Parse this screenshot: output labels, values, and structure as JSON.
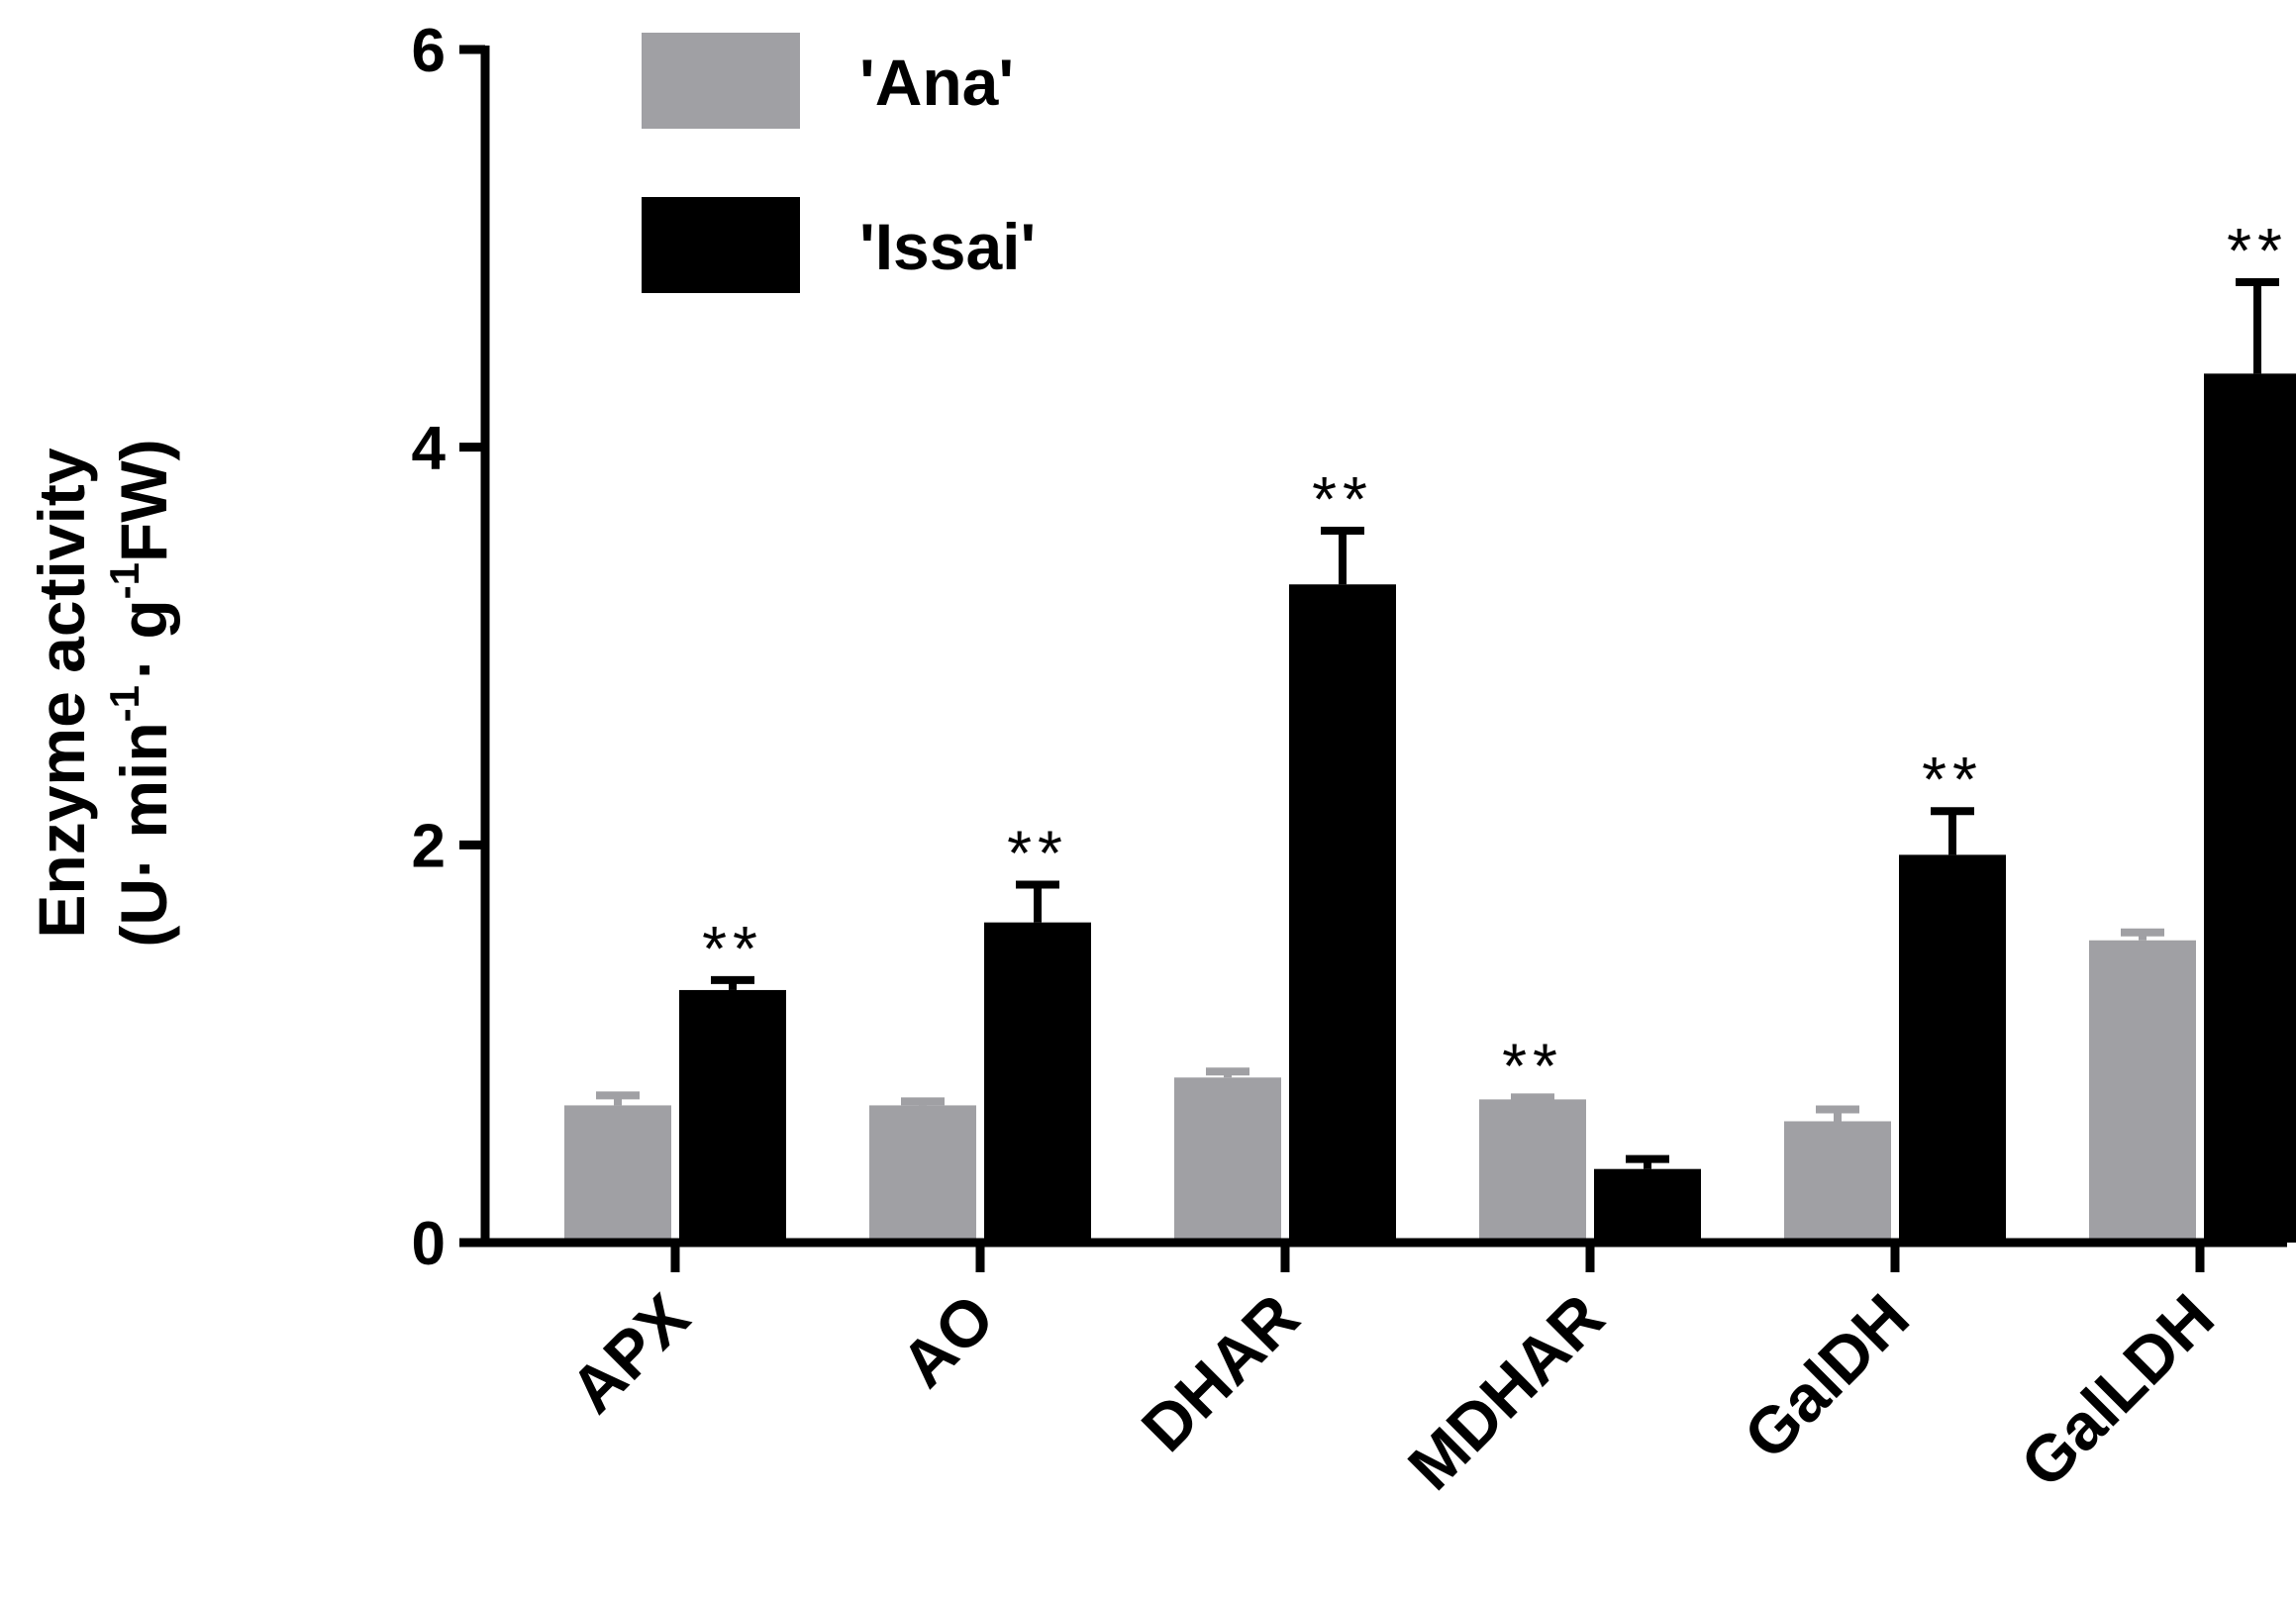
{
  "chart_data": {
    "type": "bar",
    "title": "",
    "xlabel": "",
    "ylabel_line1": "Enzyme activity",
    "ylabel_line2": {
      "p1": "(U· min",
      "sup1": "-1",
      "p2": "· g",
      "sup2": "-1",
      "p3": "FW)"
    },
    "ylim": [
      0,
      6
    ],
    "yticks": [
      0,
      2,
      4,
      6
    ],
    "ytick_labels": [
      "0",
      "2",
      "4",
      "6"
    ],
    "categories": [
      "APX",
      "AO",
      "DHAR",
      "MDHAR",
      "GalDH",
      "GalLDH"
    ],
    "series": [
      {
        "name": "'Ana'",
        "color": "#a0a0a4",
        "values": [
          0.69,
          0.69,
          0.83,
          0.72,
          0.61,
          1.52
        ],
        "errors": [
          0.05,
          0.02,
          0.03,
          0.01,
          0.06,
          0.04
        ]
      },
      {
        "name": "'Issai'",
        "color": "#000000",
        "values": [
          1.27,
          1.61,
          3.31,
          0.37,
          1.95,
          4.37
        ],
        "errors": [
          0.05,
          0.19,
          0.27,
          0.05,
          0.22,
          0.46
        ]
      }
    ],
    "significance": [
      {
        "category_index": 0,
        "series_index": 1,
        "label": "**"
      },
      {
        "category_index": 1,
        "series_index": 1,
        "label": "**"
      },
      {
        "category_index": 2,
        "series_index": 1,
        "label": "**"
      },
      {
        "category_index": 3,
        "series_index": 0,
        "label": "**"
      },
      {
        "category_index": 4,
        "series_index": 1,
        "label": "**"
      },
      {
        "category_index": 5,
        "series_index": 1,
        "label": "**"
      }
    ],
    "legend_position": "top-left",
    "grid": false
  }
}
